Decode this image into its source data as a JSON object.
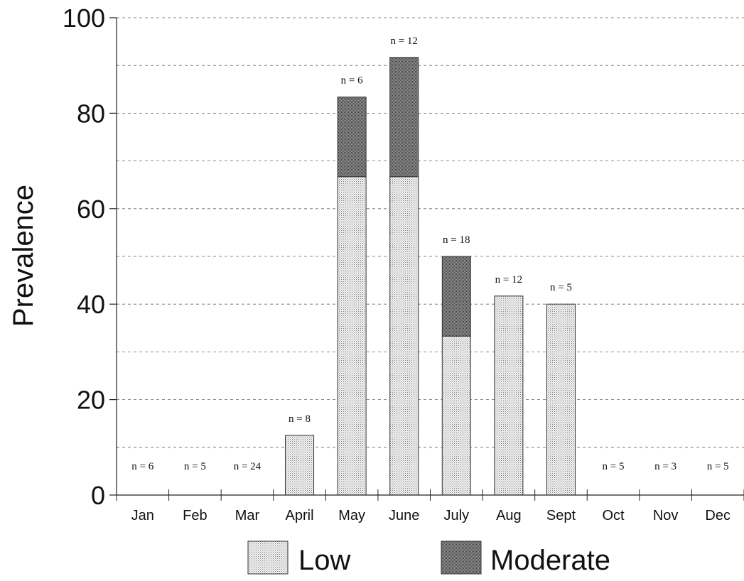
{
  "chart_data": {
    "type": "bar",
    "stacked": true,
    "ylabel": "Prevalence",
    "xlabel": "",
    "ylim": [
      0,
      100
    ],
    "yticks": [
      0,
      20,
      40,
      60,
      80,
      100
    ],
    "grid": "dashed horizontal lines every 10",
    "legend_position": "bottom",
    "categories": [
      "Jan",
      "Feb",
      "Mar",
      "April",
      "May",
      "June",
      "July",
      "Aug",
      "Sept",
      "Oct",
      "Nov",
      "Dec"
    ],
    "series": [
      {
        "name": "Low",
        "values": [
          0,
          0,
          0,
          12.5,
          66.7,
          66.7,
          33.3,
          41.7,
          40,
          0,
          0,
          0
        ],
        "color": "#d8d8d8"
      },
      {
        "name": "Moderate",
        "values": [
          0,
          0,
          0,
          0,
          16.7,
          25.0,
          16.7,
          0,
          0,
          0,
          0,
          0
        ],
        "color": "#8a8a8a"
      }
    ],
    "sample_size_labels": [
      "n = 6",
      "n = 5",
      "n = 24",
      "n = 8",
      "n = 6",
      "n = 12",
      "n = 18",
      "n = 12",
      "n = 5",
      "n = 5",
      "n = 3",
      "n = 5"
    ]
  }
}
